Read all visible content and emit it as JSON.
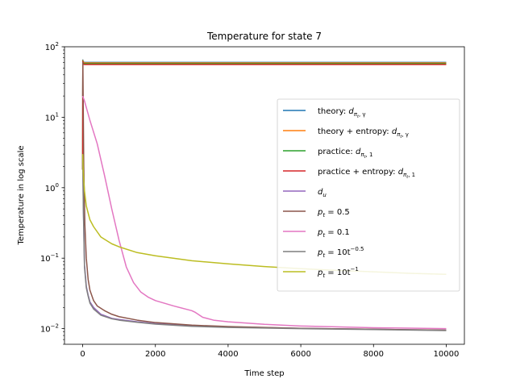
{
  "chart_data": {
    "type": "line",
    "title": "Temperature for state 7",
    "xlabel": "Time step",
    "ylabel": "Temperature in log scale",
    "yscale": "log",
    "xlim": [
      -500,
      10500
    ],
    "ylim": [
      0.006,
      100
    ],
    "x_ticks": [
      0,
      2000,
      4000,
      6000,
      8000,
      10000
    ],
    "x_tick_labels": [
      "0",
      "2000",
      "4000",
      "6000",
      "8000",
      "10000"
    ],
    "y_ticks": [
      0.01,
      0.1,
      1,
      10,
      100
    ],
    "y_tick_labels": [
      {
        "base": "10",
        "exp": "−2"
      },
      {
        "base": "10",
        "exp": "−1"
      },
      {
        "base": "10",
        "exp": "0"
      },
      {
        "base": "10",
        "exp": "1"
      },
      {
        "base": "10",
        "exp": "2"
      }
    ],
    "grid": false,
    "legend_position": "center-right",
    "series": [
      {
        "name": {
          "main": "theory: ",
          "math": "d",
          "sub": "π",
          "sub2": "t",
          "tail": ", γ"
        },
        "color": "#1f77b4",
        "x": [
          0,
          5,
          10,
          50,
          100,
          500,
          1000,
          2000,
          5000,
          10000
        ],
        "y": [
          1.8,
          65,
          61,
          60,
          60,
          60,
          60,
          60,
          60,
          60
        ]
      },
      {
        "name": {
          "main": "theory + entropy: ",
          "math": "d",
          "sub": "π",
          "sub2": "t",
          "tail": ", γ"
        },
        "color": "#ff7f0e",
        "x": [
          0,
          5,
          10,
          50,
          100,
          500,
          1000,
          2000,
          5000,
          10000
        ],
        "y": [
          1.8,
          64,
          61,
          59,
          59,
          59,
          59,
          59,
          59,
          59
        ]
      },
      {
        "name": {
          "main": "practice: ",
          "math": "d",
          "sub": "π",
          "sub2": "t",
          "tail": ", 1"
        },
        "color": "#2ca02c",
        "x": [
          0,
          5,
          10,
          50,
          100,
          500,
          1000,
          2000,
          5000,
          10000
        ],
        "y": [
          1.8,
          63,
          58,
          57.5,
          57.5,
          57.5,
          57.5,
          57.5,
          57.5,
          57.5
        ]
      },
      {
        "name": {
          "main": "practice + entropy: ",
          "math": "d",
          "sub": "π",
          "sub2": "t",
          "tail": ", 1"
        },
        "color": "#d62728",
        "x": [
          0,
          5,
          10,
          50,
          100,
          500,
          1000,
          2000,
          5000,
          10000
        ],
        "y": [
          1.8,
          62,
          57,
          56,
          56,
          56,
          56,
          56,
          56,
          56
        ]
      },
      {
        "name": {
          "main": "",
          "math": "d",
          "sub": "u",
          "sub2": "",
          "tail": ""
        },
        "color": "#9467bd",
        "x": [
          0,
          20,
          50,
          100,
          150,
          200,
          300,
          500,
          800,
          1000,
          1500,
          2000,
          3000,
          4000,
          6000,
          8000,
          10000
        ],
        "y": [
          3.0,
          0.5,
          0.08,
          0.04,
          0.03,
          0.024,
          0.02,
          0.016,
          0.014,
          0.0135,
          0.0125,
          0.0118,
          0.011,
          0.0106,
          0.0101,
          0.0098,
          0.0095
        ]
      },
      {
        "name": {
          "main": "",
          "math": "p",
          "sub": "t",
          "sub2": "",
          "tail": " = 0.5"
        },
        "color": "#8c564b",
        "x": [
          0,
          5,
          30,
          60,
          100,
          150,
          200,
          300,
          400,
          600,
          800,
          1000,
          1500,
          2000,
          3000,
          4000,
          6000,
          8000,
          10000
        ],
        "y": [
          20,
          60,
          2.0,
          0.3,
          0.1,
          0.05,
          0.035,
          0.025,
          0.021,
          0.018,
          0.016,
          0.0148,
          0.0132,
          0.0122,
          0.0112,
          0.0107,
          0.0101,
          0.0098,
          0.0095
        ]
      },
      {
        "name": {
          "main": "",
          "math": "p",
          "sub": "t",
          "sub2": "",
          "tail": " = 0.1"
        },
        "color": "#e377c2",
        "x": [
          0,
          50,
          200,
          400,
          600,
          800,
          1000,
          1200,
          1400,
          1600,
          1800,
          2000,
          2500,
          3000,
          3100,
          3300,
          3600,
          4000,
          5000,
          6000,
          8000,
          10000
        ],
        "y": [
          20,
          17,
          9,
          4.2,
          1.5,
          0.5,
          0.18,
          0.075,
          0.045,
          0.033,
          0.028,
          0.025,
          0.021,
          0.018,
          0.017,
          0.0145,
          0.0132,
          0.0125,
          0.0115,
          0.0109,
          0.0103,
          0.01
        ]
      },
      {
        "name": {
          "main": "",
          "math": "p",
          "sub": "t",
          "sub2": "",
          "tail": " = 10t",
          "sup": "−0.5"
        },
        "color": "#7f7f7f",
        "x": [
          0,
          20,
          50,
          100,
          150,
          200,
          300,
          500,
          800,
          1000,
          1500,
          2000,
          3000,
          4000,
          6000,
          8000,
          10000
        ],
        "y": [
          2.8,
          0.45,
          0.075,
          0.038,
          0.029,
          0.023,
          0.019,
          0.0155,
          0.0138,
          0.0132,
          0.0123,
          0.0116,
          0.0108,
          0.0104,
          0.01,
          0.0097,
          0.0094
        ]
      },
      {
        "name": {
          "main": "",
          "math": "p",
          "sub": "t",
          "sub2": "",
          "tail": " = 10t",
          "sup": "−1"
        },
        "color": "#bcbd22",
        "x": [
          0,
          20,
          50,
          100,
          200,
          300,
          500,
          800,
          1000,
          1500,
          2000,
          3000,
          4000,
          5000,
          6000,
          7000,
          8000,
          9000,
          10000
        ],
        "y": [
          3.0,
          1.5,
          0.9,
          0.55,
          0.35,
          0.28,
          0.2,
          0.16,
          0.145,
          0.12,
          0.108,
          0.092,
          0.083,
          0.076,
          0.071,
          0.067,
          0.064,
          0.061,
          0.059
        ]
      }
    ]
  }
}
